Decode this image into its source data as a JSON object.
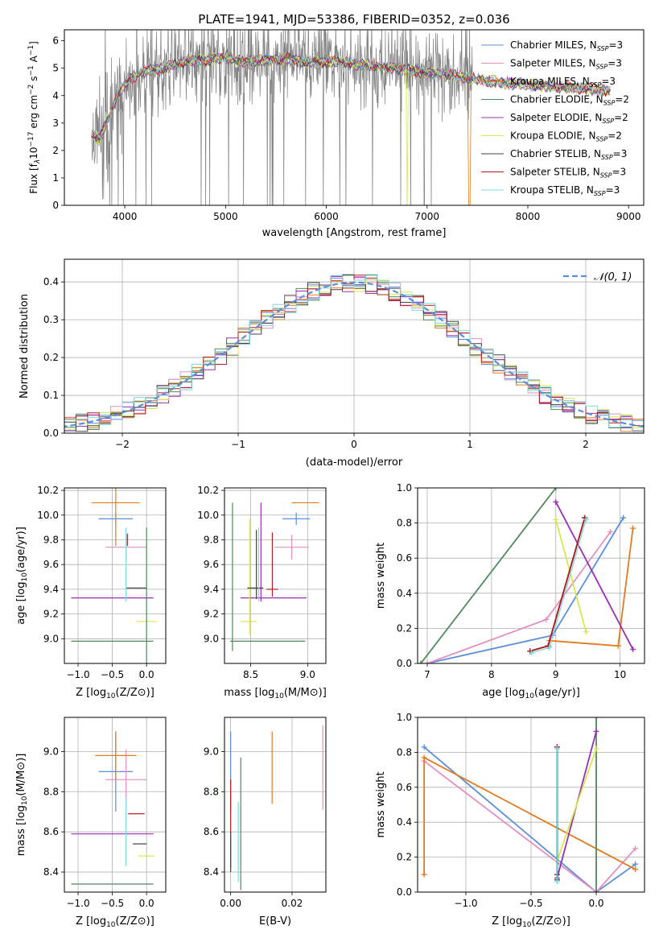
{
  "title": "PLATE=1941, MJD=53386, FIBERID=0352, z=0.036",
  "colors": {
    "Chabrier MILES": "#5b8fdc",
    "Salpeter MILES": "#e58fc0",
    "Kroupa MILES": "#e07b1f",
    "Chabrier ELODIE": "#4f8a5c",
    "Salpeter ELODIE": "#9a2fb3",
    "Kroupa ELODIE": "#d7e84e",
    "Chabrier STELIB": "#454545",
    "Salpeter STELIB": "#b61f1f",
    "Kroupa STELIB": "#7fd8e0",
    "data": "#808080",
    "normal": "#5b8fdc"
  },
  "chart_data": [
    {
      "id": "spectrum",
      "type": "line",
      "xlabel": "wavelength [Angstrom, rest frame]",
      "ylabel": "Flux [f",
      "xlim": [
        3400,
        9150
      ],
      "ylim": [
        0,
        6.4
      ],
      "xticks": [
        4000,
        5000,
        6000,
        7000,
        8000,
        9000
      ],
      "yticks": [
        0,
        1,
        2,
        3,
        4,
        5,
        6
      ],
      "legend": [
        {
          "name": "Chabrier MILES",
          "suffix": "=3"
        },
        {
          "name": "Salpeter MILES",
          "suffix": "=3"
        },
        {
          "name": "Kroupa MILES",
          "suffix": "=3"
        },
        {
          "name": "Chabrier ELODIE",
          "suffix": "=2"
        },
        {
          "name": "Salpeter ELODIE",
          "suffix": "=2"
        },
        {
          "name": "Kroupa ELODIE",
          "suffix": "=2"
        },
        {
          "name": "Chabrier STELIB",
          "suffix": "=3"
        },
        {
          "name": "Salpeter STELIB",
          "suffix": "=3"
        },
        {
          "name": "Kroupa STELIB",
          "suffix": "=3"
        }
      ],
      "legend_placement": "upper right",
      "continuum": {
        "x": [
          3670,
          3750,
          3850,
          3950,
          4050,
          4200,
          4400,
          4600,
          4800,
          5000,
          5200,
          5400,
          5600,
          5800,
          6000,
          6200,
          6400,
          6600,
          6800,
          7000,
          7200,
          7400,
          7600,
          7800,
          8000,
          8200,
          8400,
          8600,
          8800
        ],
        "y": [
          2.6,
          2.4,
          3.3,
          4.2,
          4.6,
          4.9,
          5.0,
          5.25,
          5.3,
          5.4,
          5.2,
          5.3,
          5.35,
          5.2,
          5.25,
          5.2,
          5.1,
          5.0,
          4.95,
          4.85,
          4.75,
          4.65,
          4.55,
          4.45,
          4.4,
          4.35,
          4.3,
          4.25,
          4.2
        ]
      },
      "data_noisy_until": 7450,
      "drops": [
        {
          "series": "Kroupa ELODIE",
          "x": 6800
        },
        {
          "series": "Kroupa MILES",
          "x": 7420
        }
      ]
    },
    {
      "id": "residual-histogram",
      "type": "line",
      "xlabel": "(data-model)/error",
      "ylabel": "Normed distribution",
      "xlim": [
        -2.5,
        2.5
      ],
      "ylim": [
        0,
        0.46
      ],
      "xticks": [
        -2,
        -1,
        0,
        1,
        2
      ],
      "yticks": [
        0.0,
        0.1,
        0.2,
        0.3,
        0.4
      ],
      "bin_width": 0.1,
      "reference": {
        "name": "𝒩(0, 1)",
        "mean": 0,
        "sigma": 1
      },
      "legend_placement": "upper right"
    },
    {
      "id": "age-vs-Z",
      "type": "scatter",
      "xlabel": "Z [log",
      "ylabel": "age  [log",
      "xlim": [
        -1.2,
        0.28
      ],
      "ylim": [
        8.8,
        10.22
      ],
      "xticks": [
        -1.0,
        -0.5,
        0.0
      ],
      "yticks": [
        9.0,
        9.2,
        9.4,
        9.6,
        9.8,
        10.0,
        10.2
      ],
      "points": [
        {
          "series": "Chabrier MILES",
          "x": -0.45,
          "xerr": 0.25,
          "y": 9.97,
          "yerr": 0.05
        },
        {
          "series": "Salpeter MILES",
          "x": -0.3,
          "xerr": 0.3,
          "y": 9.74,
          "yerr": 0.1
        },
        {
          "series": "Kroupa MILES",
          "x": -0.45,
          "xerr": 0.35,
          "y": 10.1,
          "yerr": 0.35
        },
        {
          "series": "Chabrier ELODIE",
          "x": -0.5,
          "xerr": 0.6,
          "y": 8.98,
          "yerr": 0.0
        },
        {
          "series": "Salpeter ELODIE",
          "x": -0.5,
          "xerr": 0.6,
          "y": 9.33,
          "yerr": 0.0
        },
        {
          "series": "Kroupa ELODIE",
          "x": 0.0,
          "xerr": 0.15,
          "y": 9.14,
          "yerr": 0.0
        },
        {
          "series": "Chabrier STELIB",
          "x": -0.15,
          "xerr": 0.15,
          "y": 9.41,
          "yerr": 0.0
        },
        {
          "series": "Salpeter STELIB",
          "x": -0.28,
          "xerr": 0.0,
          "y": 9.8,
          "yerr": 0.05
        },
        {
          "series": "Kroupa STELIB",
          "x": -0.3,
          "xerr": 0.0,
          "y": 9.6,
          "yerr": 0.3
        },
        {
          "series": "Chabrier ELODIE",
          "x": 0.0,
          "xerr": 0.0,
          "y": 9.3,
          "yerr": 0.6
        }
      ]
    },
    {
      "id": "age-vs-mass",
      "type": "scatter",
      "xlabel": "mass [log",
      "ylabel": "",
      "xlim": [
        8.27,
        9.16
      ],
      "ylim": [
        8.8,
        10.22
      ],
      "xticks": [
        8.5,
        9.0
      ],
      "yticks": [
        9.0,
        9.2,
        9.4,
        9.6,
        9.8,
        10.0,
        10.2
      ],
      "points": [
        {
          "series": "Chabrier MILES",
          "x": 8.9,
          "xerr": 0.12,
          "y": 9.97,
          "yerr": 0.05
        },
        {
          "series": "Salpeter MILES",
          "x": 8.86,
          "xerr": 0.15,
          "y": 9.74,
          "yerr": 0.1
        },
        {
          "series": "Kroupa MILES",
          "x": 8.98,
          "xerr": 0.12,
          "y": 10.1,
          "yerr": 0.0
        },
        {
          "series": "Chabrier ELODIE",
          "x": 8.34,
          "xerr": 0.0,
          "y": 9.5,
          "yerr": 0.6
        },
        {
          "series": "Chabrier ELODIE",
          "x": 8.65,
          "xerr": 0.33,
          "y": 8.98,
          "yerr": 0.0
        },
        {
          "series": "Salpeter ELODIE",
          "x": 8.59,
          "xerr": 0.0,
          "y": 9.7,
          "yerr": 0.4
        },
        {
          "series": "Salpeter ELODIE",
          "x": 8.7,
          "xerr": 0.29,
          "y": 9.33,
          "yerr": 0.0
        },
        {
          "series": "Kroupa ELODIE",
          "x": 8.49,
          "xerr": 0.0,
          "y": 9.5,
          "yerr": 0.47
        },
        {
          "series": "Kroupa ELODIE",
          "x": 8.48,
          "xerr": 0.07,
          "y": 9.14,
          "yerr": 0.0
        },
        {
          "series": "Chabrier STELIB",
          "x": 8.54,
          "xerr": 0.07,
          "y": 9.41,
          "yerr": 0.0
        },
        {
          "series": "Chabrier STELIB",
          "x": 8.55,
          "xerr": 0.0,
          "y": 9.6,
          "yerr": 0.28
        },
        {
          "series": "Salpeter STELIB",
          "x": 8.69,
          "xerr": 0.05,
          "y": 9.4,
          "yerr": 0.0
        },
        {
          "series": "Salpeter STELIB",
          "x": 8.69,
          "xerr": 0.0,
          "y": 9.6,
          "yerr": 0.26
        },
        {
          "series": "Kroupa STELIB",
          "x": 8.57,
          "xerr": 0.0,
          "y": 9.6,
          "yerr": 0.3
        }
      ]
    },
    {
      "id": "weight-vs-age",
      "type": "line",
      "xlabel": "age  [log",
      "ylabel": "mass weight",
      "xlim": [
        6.85,
        10.38
      ],
      "ylim": [
        0,
        1
      ],
      "xticks": [
        7,
        8,
        9,
        10
      ],
      "yticks": [
        0.0,
        0.2,
        0.4,
        0.6,
        0.8,
        1.0
      ],
      "series": [
        {
          "name": "Chabrier MILES",
          "x": [
            7.0,
            8.95,
            10.05
          ],
          "y": [
            0.0,
            0.16,
            0.83
          ]
        },
        {
          "name": "Salpeter MILES",
          "x": [
            7.0,
            8.85,
            9.85
          ],
          "y": [
            0.0,
            0.25,
            0.75
          ]
        },
        {
          "name": "Kroupa MILES",
          "x": [
            8.9,
            9.97,
            10.2
          ],
          "y": [
            0.13,
            0.1,
            0.77
          ]
        },
        {
          "name": "Chabrier ELODIE",
          "x": [
            6.9,
            9.0
          ],
          "y": [
            0.0,
            1.0
          ]
        },
        {
          "name": "Salpeter ELODIE",
          "x": [
            9.0,
            10.2
          ],
          "y": [
            0.92,
            0.08
          ]
        },
        {
          "name": "Kroupa ELODIE",
          "x": [
            9.0,
            9.47
          ],
          "y": [
            0.82,
            0.18
          ]
        },
        {
          "name": "Chabrier STELIB",
          "x": [
            8.6,
            8.88,
            9.45
          ],
          "y": [
            0.07,
            0.1,
            0.83
          ]
        },
        {
          "name": "Salpeter STELIB",
          "x": [
            8.6,
            8.88,
            9.45
          ],
          "y": [
            0.07,
            0.1,
            0.83
          ]
        },
        {
          "name": "Kroupa STELIB",
          "x": [
            8.62,
            8.9,
            9.47
          ],
          "y": [
            0.06,
            0.09,
            0.82
          ]
        }
      ]
    },
    {
      "id": "mass-vs-Z",
      "type": "scatter",
      "xlabel": "Z [log",
      "ylabel": "mass [log",
      "xlim": [
        -1.2,
        0.28
      ],
      "ylim": [
        8.3,
        9.17
      ],
      "xticks": [
        -1.0,
        -0.5,
        0.0
      ],
      "yticks": [
        8.4,
        8.6,
        8.8,
        9.0
      ],
      "points": [
        {
          "series": "Chabrier MILES",
          "x": -0.45,
          "xerr": 0.25,
          "y": 8.9,
          "yerr": 0.2
        },
        {
          "series": "Salpeter MILES",
          "x": -0.3,
          "xerr": 0.3,
          "y": 8.86,
          "yerr": 0.15
        },
        {
          "series": "Kroupa MILES",
          "x": -0.45,
          "xerr": 0.3,
          "y": 8.98,
          "yerr": 0.12
        },
        {
          "series": "Chabrier ELODIE",
          "x": -0.5,
          "xerr": 0.6,
          "y": 8.34,
          "yerr": 0.0
        },
        {
          "series": "Salpeter ELODIE",
          "x": -0.5,
          "xerr": 0.6,
          "y": 8.59,
          "yerr": 0.0
        },
        {
          "series": "Kroupa ELODIE",
          "x": 0.0,
          "xerr": 0.12,
          "y": 8.48,
          "yerr": 0.0
        },
        {
          "series": "Chabrier STELIB",
          "x": -0.1,
          "xerr": 0.1,
          "y": 8.54,
          "yerr": 0.0
        },
        {
          "series": "Salpeter STELIB",
          "x": -0.15,
          "xerr": 0.12,
          "y": 8.69,
          "yerr": 0.0
        },
        {
          "series": "Kroupa STELIB",
          "x": -0.3,
          "xerr": 0.0,
          "y": 8.6,
          "yerr": 0.17
        }
      ]
    },
    {
      "id": "mass-vs-EBV",
      "type": "scatter",
      "xlabel": "E(B-V)",
      "ylabel": "",
      "xlim": [
        -0.002,
        0.031
      ],
      "ylim": [
        8.3,
        9.17
      ],
      "xticks": [
        0.0,
        0.02
      ],
      "yticks": [
        8.4,
        8.6,
        8.8,
        9.0
      ],
      "points": [
        {
          "series": "Chabrier MILES",
          "x": 0.0,
          "y": 8.9,
          "yerr": 0.2
        },
        {
          "series": "Salpeter MILES",
          "x": 0.03,
          "y": 8.92,
          "yerr": 0.21
        },
        {
          "series": "Kroupa MILES",
          "x": 0.0135,
          "y": 8.92,
          "yerr": 0.18
        },
        {
          "series": "Chabrier ELODIE",
          "x": 0.0033,
          "y": 8.64,
          "yerr": 0.33
        },
        {
          "series": "Salpeter STELIB",
          "x": 0.0,
          "y": 8.64,
          "yerr": 0.22
        },
        {
          "series": "Kroupa STELIB",
          "x": 0.0025,
          "y": 8.55,
          "yerr": 0.2
        },
        {
          "series": "Chabrier STELIB",
          "x": 0.0,
          "y": 8.5,
          "yerr": 0.1
        }
      ]
    },
    {
      "id": "weight-vs-Z",
      "type": "line",
      "xlabel": "Z [log",
      "ylabel": "mass weight",
      "xlim": [
        -1.37,
        0.37
      ],
      "ylim": [
        0,
        1
      ],
      "xticks": [
        -1.0,
        -0.5,
        0.0
      ],
      "yticks": [
        0.0,
        0.2,
        0.4,
        0.6,
        0.8,
        1.0
      ],
      "series": [
        {
          "name": "Chabrier MILES",
          "x": [
            -1.32,
            0.0,
            0.3
          ],
          "y": [
            0.83,
            0.0,
            0.16
          ]
        },
        {
          "name": "Salpeter MILES",
          "x": [
            -1.32,
            0.0,
            0.3
          ],
          "y": [
            0.75,
            0.0,
            0.25
          ]
        },
        {
          "name": "Kroupa MILES",
          "x": [
            -1.32,
            -1.32,
            0.3
          ],
          "y": [
            0.1,
            0.77,
            0.13
          ]
        },
        {
          "name": "Chabrier ELODIE",
          "x": [
            0.0,
            0.0
          ],
          "y": [
            0.0,
            1.0
          ]
        },
        {
          "name": "Salpeter ELODIE",
          "x": [
            -0.3,
            0.0
          ],
          "y": [
            0.08,
            0.92
          ]
        },
        {
          "name": "Kroupa ELODIE",
          "x": [
            -0.3,
            0.0
          ],
          "y": [
            0.18,
            0.82
          ]
        },
        {
          "name": "Chabrier STELIB",
          "x": [
            -0.3,
            -0.3
          ],
          "y": [
            0.07,
            0.83
          ]
        },
        {
          "name": "Salpeter STELIB",
          "x": [
            -0.3,
            -0.3
          ],
          "y": [
            0.1,
            0.83
          ]
        },
        {
          "name": "Kroupa STELIB",
          "x": [
            -0.3,
            -0.3
          ],
          "y": [
            0.06,
            0.82
          ]
        }
      ]
    }
  ]
}
